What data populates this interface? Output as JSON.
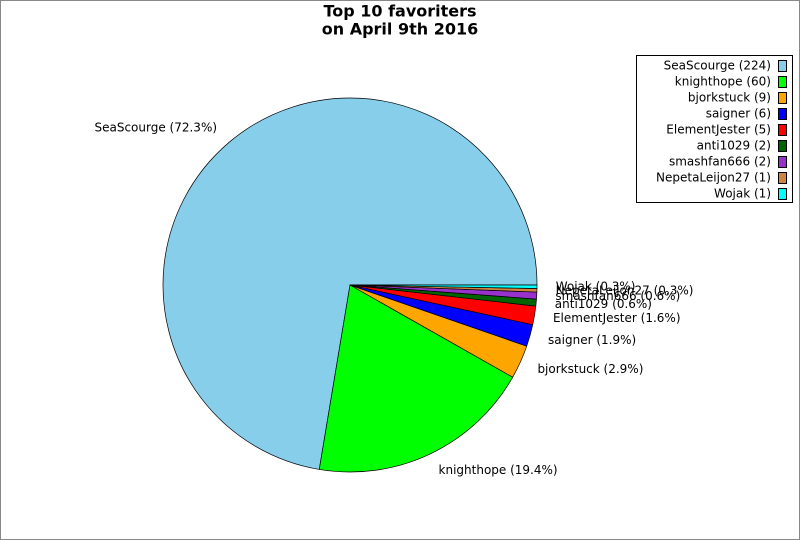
{
  "chart_data": {
    "type": "pie",
    "title": "Top 10 favoriters",
    "subtitle": "on April 9th 2016",
    "categories": [
      "SeaScourge (224)",
      "knighthope (60)",
      "bjorkstuck (9)",
      "saigner (6)",
      "ElementJester (5)",
      "anti1029 (2)",
      "smashfan666 (2)",
      "NepetaLeijon27 (1)",
      "Wojak (1)"
    ],
    "values": [
      72.3,
      19.4,
      2.9,
      1.9,
      1.6,
      0.6,
      0.6,
      0.3,
      0.3
    ],
    "value_labels": [
      "SeaScourge (72.3%)",
      "knighthope (19.4%)",
      "bjorkstuck (2.9%)",
      "saigner (1.9%)",
      "ElementJester (1.6%)",
      "anti1029 (0.6%)",
      "smashfan666 (0.6%)",
      "NepetaLeijon27 (0.3%)",
      "Wojak (0.3%)"
    ],
    "colors": [
      "#87ceeb",
      "#00ff00",
      "#ffa500",
      "#0000ff",
      "#ff0000",
      "#006400",
      "#9932cc",
      "#cd853f",
      "#00ffff"
    ],
    "legend": "upper right"
  }
}
